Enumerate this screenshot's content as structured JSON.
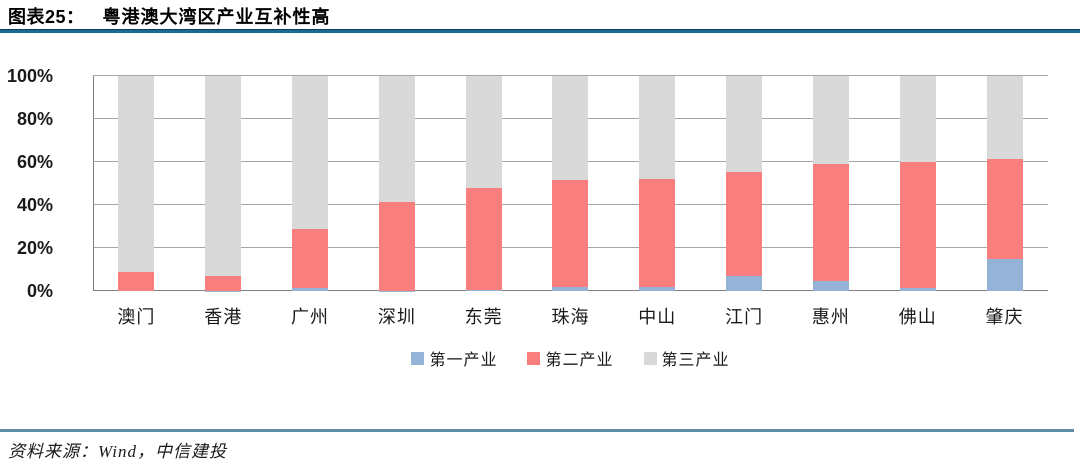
{
  "header": {
    "figure_label": "图表25：",
    "title": "粤港澳大湾区产业互补性高"
  },
  "chart_data": {
    "type": "bar",
    "stacked": true,
    "title": "粤港澳大湾区产业互补性高",
    "categories": [
      "澳门",
      "香港",
      "广州",
      "深圳",
      "东莞",
      "珠海",
      "中山",
      "江门",
      "惠州",
      "佛山",
      "肇庆"
    ],
    "series": [
      {
        "name": "第一产业",
        "color": "#95B3D7",
        "values": [
          0,
          0.1,
          1.2,
          0.1,
          0.3,
          1.7,
          1.8,
          7.0,
          4.5,
          1.5,
          15.0
        ]
      },
      {
        "name": "第二产业",
        "color": "#F97F7F",
        "values": [
          8.8,
          6.9,
          27.8,
          41.3,
          47.4,
          49.8,
          50.1,
          48.2,
          54.8,
          58.6,
          46.4
        ]
      },
      {
        "name": "第三产业",
        "color": "#D9D9D9",
        "values": [
          91.2,
          93.0,
          71.0,
          58.6,
          52.3,
          48.5,
          48.1,
          44.8,
          40.7,
          39.9,
          38.6
        ]
      }
    ],
    "y_tick_labels": [
      "0%",
      "20%",
      "40%",
      "60%",
      "80%",
      "100%"
    ],
    "ylim": [
      0,
      100
    ],
    "grid": "horizontal",
    "legend_position": "bottom",
    "xlabel": "",
    "ylabel": ""
  },
  "footer": {
    "source": "资料来源：Wind，中信建投"
  },
  "colors": {
    "header_rule": "#1B6A92",
    "header_rule_edge": "#0F3D5C",
    "footer_rule": "#5E8DA9",
    "gridline": "#A6A6A6",
    "axis_line": "#808080",
    "label_text": "#1A1A1A"
  }
}
